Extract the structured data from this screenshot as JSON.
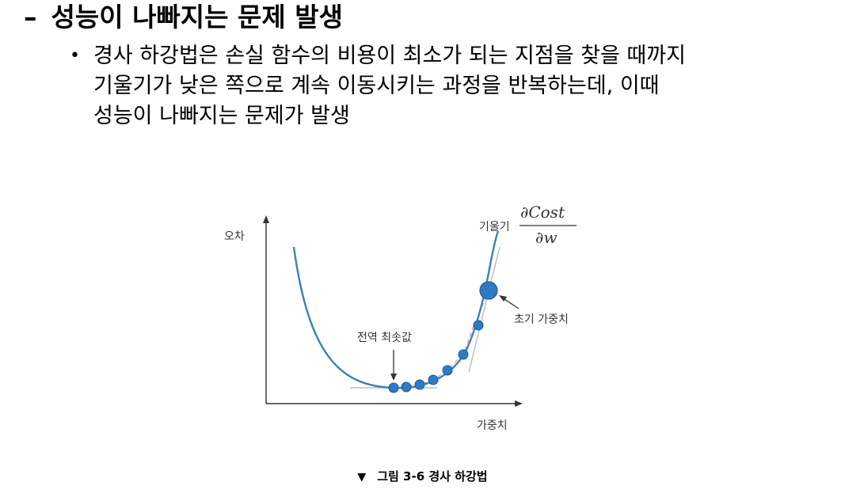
{
  "heading": {
    "dash": "–",
    "title": "성능이 나빠지는 문제 발생"
  },
  "bullet": {
    "marker": "•",
    "lines": [
      "경사 하강법은 손실 함수의 비용이 최소가 되는 지점을 찾을 때까지",
      "기울기가 낮은 쪽으로 계속 이동시키는 과정을 반복하는데, 이때",
      "성능이 나빠지는 문제가 발생"
    ]
  },
  "diagram": {
    "y_axis_label": "오차",
    "x_axis_label": "가중치",
    "slope_label": "기울기",
    "slope_numerator": "∂Cost",
    "slope_denominator": "∂w",
    "global_min_label": "전역 최솟값",
    "initial_weight_label": "초기 가중치",
    "colors": {
      "curve": "#3a82b8",
      "dot_fill": "#2f7ac4",
      "dot_stroke": "#1f5a93",
      "tangent": "#bfbfbf",
      "dashed_path": "#e3a3a3",
      "axis": "#333333"
    }
  },
  "caption": {
    "marker": "▼",
    "text": "그림 3-6 경사 하강법"
  }
}
